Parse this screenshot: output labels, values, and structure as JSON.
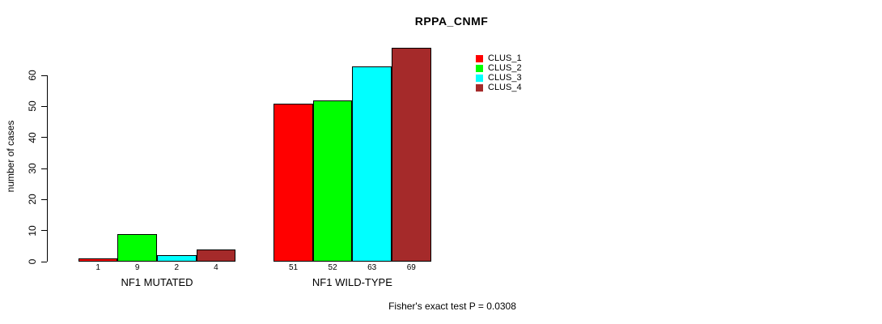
{
  "title": "RPPA_CNMF",
  "y_axis": {
    "label": "number of cases",
    "ticks": [
      0,
      10,
      20,
      30,
      40,
      50,
      60
    ]
  },
  "legend": {
    "items": [
      {
        "label": "CLUS_1",
        "color": "#ff0000"
      },
      {
        "label": "CLUS_2",
        "color": "#00ff00"
      },
      {
        "label": "CLUS_3",
        "color": "#00ffff"
      },
      {
        "label": "CLUS_4",
        "color": "#a52a2a"
      }
    ]
  },
  "footer": "Fisher's exact test P = 0.0308",
  "chart_data": {
    "type": "bar",
    "title": "RPPA_CNMF",
    "categories": [
      "NF1 MUTATED",
      "NF1 WILD-TYPE"
    ],
    "series": [
      {
        "name": "CLUS_1",
        "color": "#ff0000",
        "values": [
          1,
          51
        ]
      },
      {
        "name": "CLUS_2",
        "color": "#00ff00",
        "values": [
          9,
          52
        ]
      },
      {
        "name": "CLUS_3",
        "color": "#00ffff",
        "values": [
          2,
          63
        ]
      },
      {
        "name": "CLUS_4",
        "color": "#a52a2a",
        "values": [
          4,
          69
        ]
      }
    ],
    "xlabel": "",
    "ylabel": "number of cases",
    "ylim": [
      0,
      60
    ],
    "grid": false,
    "legend_position": "top-right",
    "bar_labels_shown": true,
    "annotation": "Fisher's exact test P = 0.0308"
  }
}
